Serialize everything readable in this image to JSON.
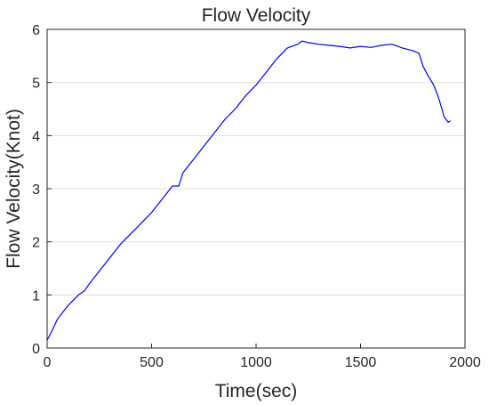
{
  "chart_data": {
    "type": "line",
    "title": "Flow Velocity",
    "xlabel": "Time(sec)",
    "ylabel": "Flow Velocity(Knot)",
    "xlim": [
      0,
      2000
    ],
    "ylim": [
      0,
      6
    ],
    "xticks": [
      "0",
      "500",
      "1000",
      "1500",
      "2000"
    ],
    "yticks": [
      "0",
      "1",
      "2",
      "3",
      "4",
      "5",
      "6"
    ],
    "grid": "horizontal",
    "line_color": "#0000ff",
    "series": [
      {
        "x": [
          0,
          20,
          50,
          100,
          150,
          180,
          200,
          250,
          300,
          350,
          400,
          450,
          500,
          550,
          600,
          630,
          650,
          700,
          750,
          800,
          850,
          900,
          950,
          1000,
          1050,
          1100,
          1150,
          1200,
          1220,
          1250,
          1300,
          1350,
          1400,
          1450,
          1500,
          1550,
          1600,
          1650,
          1700,
          1750,
          1780,
          1800,
          1820,
          1850,
          1870,
          1890,
          1900,
          1920,
          1930
        ],
        "y": [
          0.15,
          0.3,
          0.55,
          0.8,
          1.0,
          1.08,
          1.2,
          1.45,
          1.7,
          1.95,
          2.15,
          2.35,
          2.55,
          2.8,
          3.05,
          3.05,
          3.3,
          3.55,
          3.8,
          4.05,
          4.3,
          4.5,
          4.75,
          4.95,
          5.2,
          5.45,
          5.65,
          5.72,
          5.78,
          5.75,
          5.72,
          5.7,
          5.68,
          5.65,
          5.68,
          5.66,
          5.7,
          5.72,
          5.65,
          5.6,
          5.55,
          5.3,
          5.15,
          4.95,
          4.75,
          4.5,
          4.35,
          4.25,
          4.28
        ]
      }
    ]
  }
}
